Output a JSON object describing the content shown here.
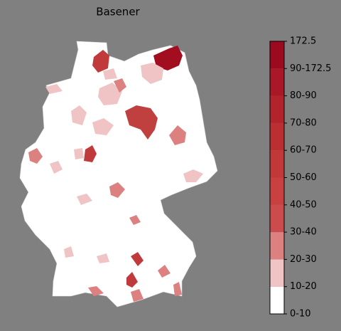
{
  "title": "Basener",
  "colorbar": {
    "labels": [
      "0-10",
      "10-20",
      "20-30",
      "30-40",
      "40-50",
      "50-60",
      "60-70",
      "70-80",
      "80-90",
      "90-172.5",
      "172.5"
    ],
    "colors": [
      "#ffffff",
      "#f0c4c4",
      "#dc8080",
      "#cc4c4e",
      "#c8403f",
      "#c23838",
      "#bb2e32",
      "#b3232b",
      "#aa1726",
      "#9c0a1f"
    ]
  }
}
